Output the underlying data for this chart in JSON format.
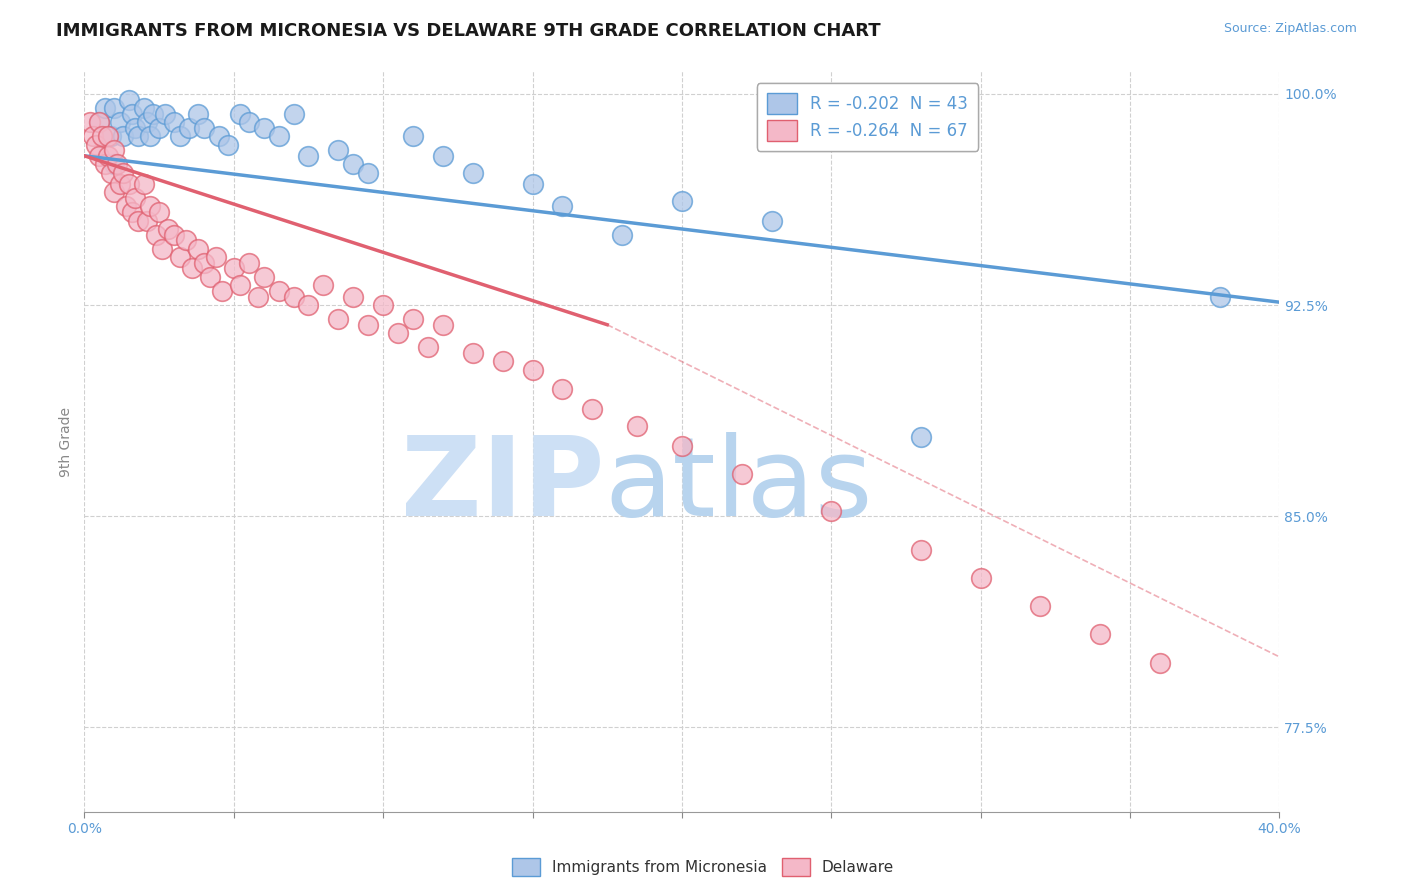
{
  "title": "IMMIGRANTS FROM MICRONESIA VS DELAWARE 9TH GRADE CORRELATION CHART",
  "source": "Source: ZipAtlas.com",
  "ylabel": "9th Grade",
  "xlim": [
    0.0,
    0.4
  ],
  "ylim": [
    0.745,
    1.008
  ],
  "yticks": [
    0.775,
    0.85,
    0.925,
    1.0
  ],
  "ytick_labels": [
    "77.5%",
    "85.0%",
    "92.5%",
    "100.0%"
  ],
  "xticks": [
    0.0,
    0.05,
    0.1,
    0.15,
    0.2,
    0.25,
    0.3,
    0.35,
    0.4
  ],
  "xtick_labels": [
    "0.0%",
    "",
    "",
    "",
    "",
    "",
    "",
    "",
    "40.0%"
  ],
  "legend_entries": [
    {
      "label": "R = -0.202  N = 43",
      "facecolor": "#aec6e8",
      "edgecolor": "#5b9bd5"
    },
    {
      "label": "R = -0.264  N = 67",
      "facecolor": "#f4b8c8",
      "edgecolor": "#e8728a"
    }
  ],
  "legend_bottom": [
    {
      "label": "Immigrants from Micronesia",
      "facecolor": "#aec6e8",
      "edgecolor": "#5b9bd5"
    },
    {
      "label": "Delaware",
      "facecolor": "#f4b8c8",
      "edgecolor": "#e8728a"
    }
  ],
  "blue_scatter_x": [
    0.005,
    0.007,
    0.009,
    0.01,
    0.01,
    0.012,
    0.013,
    0.015,
    0.016,
    0.017,
    0.018,
    0.02,
    0.021,
    0.022,
    0.023,
    0.025,
    0.027,
    0.03,
    0.032,
    0.035,
    0.038,
    0.04,
    0.045,
    0.048,
    0.052,
    0.055,
    0.06,
    0.065,
    0.07,
    0.075,
    0.085,
    0.09,
    0.095,
    0.11,
    0.12,
    0.13,
    0.15,
    0.16,
    0.18,
    0.2,
    0.23,
    0.28,
    0.38
  ],
  "blue_scatter_y": [
    0.99,
    0.995,
    0.985,
    0.975,
    0.995,
    0.99,
    0.985,
    0.998,
    0.993,
    0.988,
    0.985,
    0.995,
    0.99,
    0.985,
    0.993,
    0.988,
    0.993,
    0.99,
    0.985,
    0.988,
    0.993,
    0.988,
    0.985,
    0.982,
    0.993,
    0.99,
    0.988,
    0.985,
    0.993,
    0.978,
    0.98,
    0.975,
    0.972,
    0.985,
    0.978,
    0.972,
    0.968,
    0.96,
    0.95,
    0.962,
    0.955,
    0.878,
    0.928
  ],
  "pink_scatter_x": [
    0.002,
    0.003,
    0.004,
    0.005,
    0.005,
    0.006,
    0.007,
    0.008,
    0.008,
    0.009,
    0.01,
    0.01,
    0.011,
    0.012,
    0.013,
    0.014,
    0.015,
    0.016,
    0.017,
    0.018,
    0.02,
    0.021,
    0.022,
    0.024,
    0.025,
    0.026,
    0.028,
    0.03,
    0.032,
    0.034,
    0.036,
    0.038,
    0.04,
    0.042,
    0.044,
    0.046,
    0.05,
    0.052,
    0.055,
    0.058,
    0.06,
    0.065,
    0.07,
    0.075,
    0.08,
    0.085,
    0.09,
    0.095,
    0.1,
    0.105,
    0.11,
    0.115,
    0.12,
    0.13,
    0.14,
    0.15,
    0.16,
    0.17,
    0.185,
    0.2,
    0.22,
    0.25,
    0.28,
    0.3,
    0.32,
    0.34,
    0.36
  ],
  "pink_scatter_y": [
    0.99,
    0.985,
    0.982,
    0.99,
    0.978,
    0.985,
    0.975,
    0.985,
    0.978,
    0.972,
    0.98,
    0.965,
    0.975,
    0.968,
    0.972,
    0.96,
    0.968,
    0.958,
    0.963,
    0.955,
    0.968,
    0.955,
    0.96,
    0.95,
    0.958,
    0.945,
    0.952,
    0.95,
    0.942,
    0.948,
    0.938,
    0.945,
    0.94,
    0.935,
    0.942,
    0.93,
    0.938,
    0.932,
    0.94,
    0.928,
    0.935,
    0.93,
    0.928,
    0.925,
    0.932,
    0.92,
    0.928,
    0.918,
    0.925,
    0.915,
    0.92,
    0.91,
    0.918,
    0.908,
    0.905,
    0.902,
    0.895,
    0.888,
    0.882,
    0.875,
    0.865,
    0.852,
    0.838,
    0.828,
    0.818,
    0.808,
    0.798
  ],
  "blue_line": {
    "x0": 0.0,
    "y0": 0.978,
    "x1": 0.4,
    "y1": 0.926
  },
  "pink_line_solid": {
    "x0": 0.0,
    "y0": 0.978,
    "x1": 0.175,
    "y1": 0.918
  },
  "pink_line_dash": {
    "x0": 0.175,
    "y0": 0.918,
    "x1": 0.4,
    "y1": 0.8
  },
  "blue_color": "#5b9bd5",
  "pink_color": "#e06070",
  "blue_scatter_color": "#aec6e8",
  "pink_scatter_color": "#f4b8c8",
  "watermark_zip": "ZIP",
  "watermark_atlas": "atlas",
  "watermark_color": "#cde0f5",
  "background_color": "#ffffff",
  "grid_color": "#d0d0d0"
}
